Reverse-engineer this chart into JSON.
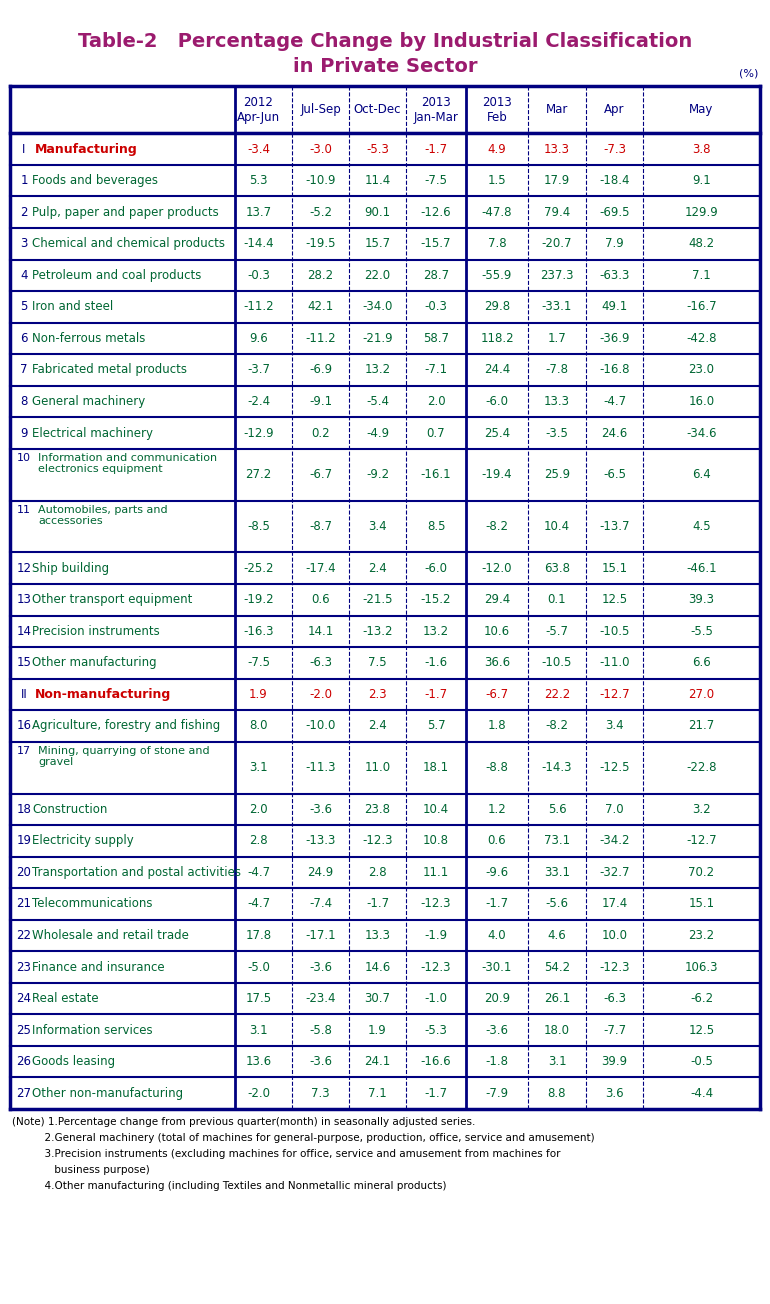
{
  "title_line1": "Table-2   Percentage Change by Industrial Classification",
  "title_line2": "in Private Sector",
  "title_color": "#9B1B6E",
  "percent_label": "(%)",
  "col_headers": [
    [
      "2012\nApr-Jun",
      "Jul-Sep",
      "Oct-Dec",
      "2013\nJan-Mar",
      "2013\nFeb",
      "Mar",
      "Apr",
      "May"
    ]
  ],
  "rows": [
    {
      "num": "I",
      "label": "  Manufacturing",
      "values": [
        "-3.4",
        "-3.0",
        "-5.3",
        "-1.7",
        "4.9",
        "13.3",
        "-7.3",
        "3.8"
      ],
      "label_color": "#CC0000",
      "value_color": "#CC0000",
      "is_section": true
    },
    {
      "num": "1",
      "label": " Foods and beverages",
      "values": [
        "5.3",
        "-10.9",
        "11.4",
        "-7.5",
        "1.5",
        "17.9",
        "-18.4",
        "9.1"
      ],
      "label_color": "#006633",
      "value_color": "#006633",
      "is_section": false
    },
    {
      "num": "2",
      "label": " Pulp, paper and paper products",
      "values": [
        "13.7",
        "-5.2",
        "90.1",
        "-12.6",
        "-47.8",
        "79.4",
        "-69.5",
        "129.9"
      ],
      "label_color": "#006633",
      "value_color": "#006633",
      "is_section": false
    },
    {
      "num": "3",
      "label": " Chemical and chemical products",
      "values": [
        "-14.4",
        "-19.5",
        "15.7",
        "-15.7",
        "7.8",
        "-20.7",
        "7.9",
        "48.2"
      ],
      "label_color": "#006633",
      "value_color": "#006633",
      "is_section": false
    },
    {
      "num": "4",
      "label": " Petroleum and coal products",
      "values": [
        "-0.3",
        "28.2",
        "22.0",
        "28.7",
        "-55.9",
        "237.3",
        "-63.3",
        "7.1"
      ],
      "label_color": "#006633",
      "value_color": "#006633",
      "is_section": false
    },
    {
      "num": "5",
      "label": " Iron and steel",
      "values": [
        "-11.2",
        "42.1",
        "-34.0",
        "-0.3",
        "29.8",
        "-33.1",
        "49.1",
        "-16.7"
      ],
      "label_color": "#006633",
      "value_color": "#006633",
      "is_section": false
    },
    {
      "num": "6",
      "label": " Non-ferrous metals",
      "values": [
        "9.6",
        "-11.2",
        "-21.9",
        "58.7",
        "118.2",
        "1.7",
        "-36.9",
        "-42.8"
      ],
      "label_color": "#006633",
      "value_color": "#006633",
      "is_section": false
    },
    {
      "num": "7",
      "label": " Fabricated metal products",
      "values": [
        "-3.7",
        "-6.9",
        "13.2",
        "-7.1",
        "24.4",
        "-7.8",
        "-16.8",
        "23.0"
      ],
      "label_color": "#006633",
      "value_color": "#006633",
      "is_section": false
    },
    {
      "num": "8",
      "label": " General machinery",
      "values": [
        "-2.4",
        "-9.1",
        "-5.4",
        "2.0",
        "-6.0",
        "13.3",
        "-4.7",
        "16.0"
      ],
      "label_color": "#006633",
      "value_color": "#006633",
      "is_section": false
    },
    {
      "num": "9",
      "label": " Electrical machinery",
      "values": [
        "-12.9",
        "0.2",
        "-4.9",
        "0.7",
        "25.4",
        "-3.5",
        "24.6",
        "-34.6"
      ],
      "label_color": "#006633",
      "value_color": "#006633",
      "is_section": false
    },
    {
      "num": "10",
      "label": "Information and communication\nelectronics equipment",
      "values": [
        "27.2",
        "-6.7",
        "-9.2",
        "-16.1",
        "-19.4",
        "25.9",
        "-6.5",
        "6.4"
      ],
      "label_color": "#006633",
      "value_color": "#006633",
      "is_section": false,
      "tall": true
    },
    {
      "num": "11",
      "label": "Automobiles, parts and\naccessories",
      "values": [
        "-8.5",
        "-8.7",
        "3.4",
        "8.5",
        "-8.2",
        "10.4",
        "-13.7",
        "4.5"
      ],
      "label_color": "#006633",
      "value_color": "#006633",
      "is_section": false,
      "tall": true
    },
    {
      "num": "12",
      "label": " Ship building",
      "values": [
        "-25.2",
        "-17.4",
        "2.4",
        "-6.0",
        "-12.0",
        "63.8",
        "15.1",
        "-46.1"
      ],
      "label_color": "#006633",
      "value_color": "#006633",
      "is_section": false
    },
    {
      "num": "13",
      "label": " Other transport equipment",
      "values": [
        "-19.2",
        "0.6",
        "-21.5",
        "-15.2",
        "29.4",
        "0.1",
        "12.5",
        "39.3"
      ],
      "label_color": "#006633",
      "value_color": "#006633",
      "is_section": false
    },
    {
      "num": "14",
      "label": " Precision instruments",
      "values": [
        "-16.3",
        "14.1",
        "-13.2",
        "13.2",
        "10.6",
        "-5.7",
        "-10.5",
        "-5.5"
      ],
      "label_color": "#006633",
      "value_color": "#006633",
      "is_section": false
    },
    {
      "num": "15",
      "label": " Other manufacturing",
      "values": [
        "-7.5",
        "-6.3",
        "7.5",
        "-1.6",
        "36.6",
        "-10.5",
        "-11.0",
        "6.6"
      ],
      "label_color": "#006633",
      "value_color": "#006633",
      "is_section": false
    },
    {
      "num": "II",
      "label": "  Non-manufacturing",
      "values": [
        "1.9",
        "-2.0",
        "2.3",
        "-1.7",
        "-6.7",
        "22.2",
        "-12.7",
        "27.0"
      ],
      "label_color": "#CC0000",
      "value_color": "#CC0000",
      "is_section": true
    },
    {
      "num": "16",
      "label": " Agriculture, forestry and fishing",
      "values": [
        "8.0",
        "-10.0",
        "2.4",
        "5.7",
        "1.8",
        "-8.2",
        "3.4",
        "21.7"
      ],
      "label_color": "#006633",
      "value_color": "#006633",
      "is_section": false
    },
    {
      "num": "17",
      "label": "Mining, quarrying of stone and\ngravel",
      "values": [
        "3.1",
        "-11.3",
        "11.0",
        "18.1",
        "-8.8",
        "-14.3",
        "-12.5",
        "-22.8"
      ],
      "label_color": "#006633",
      "value_color": "#006633",
      "is_section": false,
      "tall": true
    },
    {
      "num": "18",
      "label": " Construction",
      "values": [
        "2.0",
        "-3.6",
        "23.8",
        "10.4",
        "1.2",
        "5.6",
        "7.0",
        "3.2"
      ],
      "label_color": "#006633",
      "value_color": "#006633",
      "is_section": false
    },
    {
      "num": "19",
      "label": " Electricity supply",
      "values": [
        "2.8",
        "-13.3",
        "-12.3",
        "10.8",
        "0.6",
        "73.1",
        "-34.2",
        "-12.7"
      ],
      "label_color": "#006633",
      "value_color": "#006633",
      "is_section": false
    },
    {
      "num": "20",
      "label": " Transportation and postal activities",
      "values": [
        "-4.7",
        "24.9",
        "2.8",
        "11.1",
        "-9.6",
        "33.1",
        "-32.7",
        "70.2"
      ],
      "label_color": "#006633",
      "value_color": "#006633",
      "is_section": false
    },
    {
      "num": "21",
      "label": " Telecommunications",
      "values": [
        "-4.7",
        "-7.4",
        "-1.7",
        "-12.3",
        "-1.7",
        "-5.6",
        "17.4",
        "15.1"
      ],
      "label_color": "#006633",
      "value_color": "#006633",
      "is_section": false
    },
    {
      "num": "22",
      "label": " Wholesale and retail trade",
      "values": [
        "17.8",
        "-17.1",
        "13.3",
        "-1.9",
        "4.0",
        "4.6",
        "10.0",
        "23.2"
      ],
      "label_color": "#006633",
      "value_color": "#006633",
      "is_section": false
    },
    {
      "num": "23",
      "label": " Finance and insurance",
      "values": [
        "-5.0",
        "-3.6",
        "14.6",
        "-12.3",
        "-30.1",
        "54.2",
        "-12.3",
        "106.3"
      ],
      "label_color": "#006633",
      "value_color": "#006633",
      "is_section": false
    },
    {
      "num": "24",
      "label": " Real estate",
      "values": [
        "17.5",
        "-23.4",
        "30.7",
        "-1.0",
        "20.9",
        "26.1",
        "-6.3",
        "-6.2"
      ],
      "label_color": "#006633",
      "value_color": "#006633",
      "is_section": false
    },
    {
      "num": "25",
      "label": " Information services",
      "values": [
        "3.1",
        "-5.8",
        "1.9",
        "-5.3",
        "-3.6",
        "18.0",
        "-7.7",
        "12.5"
      ],
      "label_color": "#006633",
      "value_color": "#006633",
      "is_section": false
    },
    {
      "num": "26",
      "label": " Goods leasing",
      "values": [
        "13.6",
        "-3.6",
        "24.1",
        "-16.6",
        "-1.8",
        "3.1",
        "39.9",
        "-0.5"
      ],
      "label_color": "#006633",
      "value_color": "#006633",
      "is_section": false
    },
    {
      "num": "27",
      "label": " Other non-manufacturing",
      "values": [
        "-2.0",
        "7.3",
        "7.1",
        "-1.7",
        "-7.9",
        "8.8",
        "3.6",
        "-4.4"
      ],
      "label_color": "#006633",
      "value_color": "#006633",
      "is_section": false
    }
  ],
  "notes": [
    "(Note) 1.Percentage change from previous quarter(month) in seasonally adjusted series.",
    "          2.General machinery (total of machines for general-purpose, production, office, service and amusement)",
    "          3.Precision instruments (excluding machines for office, service and amusement from machines for",
    "             business purpose)",
    "          4.Other manufacturing (including Textiles and Nonmetallic mineral products)"
  ],
  "header_color": "#000080",
  "num_color": "#000080",
  "value_pos_color": "#006633",
  "value_neg_color": "#006633",
  "section_color": "#CC0000",
  "bg_color": "#FFFFFF",
  "grid_color": "#000080",
  "note_color": "#000000"
}
